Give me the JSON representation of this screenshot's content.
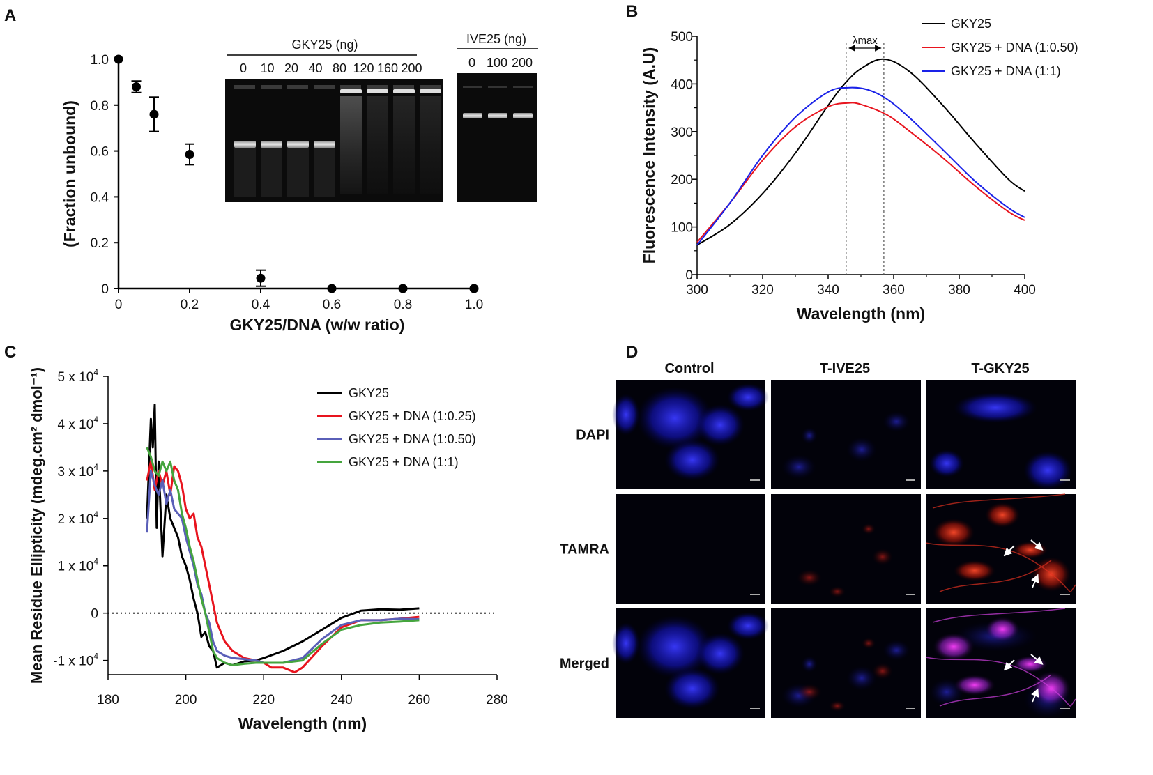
{
  "panels": {
    "a": "A",
    "b": "B",
    "c": "C",
    "d": "D"
  },
  "chart_data": [
    {
      "id": "A",
      "type": "scatter",
      "xlabel": "GKY25/DNA (w/w ratio)",
      "ylabel": "(Fraction unbound)",
      "xlim": [
        0,
        1.0
      ],
      "ylim": [
        0,
        1.0
      ],
      "xticks": [
        "0",
        "0.2",
        "0.4",
        "0.6",
        "0.8",
        "1.0"
      ],
      "yticks": [
        "0",
        "0.2",
        "0.4",
        "0.6",
        "0.8",
        "1.0"
      ],
      "points": [
        {
          "x": 0,
          "y": 1.0,
          "err": 0
        },
        {
          "x": 0.05,
          "y": 0.88,
          "err": 0.025
        },
        {
          "x": 0.1,
          "y": 0.76,
          "err": 0.075
        },
        {
          "x": 0.2,
          "y": 0.585,
          "err": 0.045
        },
        {
          "x": 0.4,
          "y": 0.045,
          "err": 0.035
        },
        {
          "x": 0.6,
          "y": 0.0,
          "err": 0
        },
        {
          "x": 0.8,
          "y": 0.0,
          "err": 0
        },
        {
          "x": 1.0,
          "y": 0.0,
          "err": 0
        }
      ],
      "gel_gky": {
        "title": "GKY25 (ng)",
        "lanes": [
          "0",
          "10",
          "20",
          "40",
          "80",
          "120",
          "160",
          "200"
        ],
        "band": [
          "low",
          "low",
          "low",
          "low",
          "well",
          "well",
          "well",
          "well"
        ]
      },
      "gel_ive": {
        "title": "IVE25 (ng)",
        "lanes": [
          "0",
          "100",
          "200"
        ]
      }
    },
    {
      "id": "B",
      "type": "line",
      "xlabel": "Wavelength (nm)",
      "ylabel": "Fluorescence Intensity (A.U)",
      "xlim": [
        300,
        400
      ],
      "ylim": [
        0,
        500
      ],
      "xticks": [
        "300",
        "320",
        "340",
        "360",
        "380",
        "400"
      ],
      "yticks": [
        "0",
        "100",
        "200",
        "300",
        "400",
        "500"
      ],
      "annotation": "λmax",
      "vlines": [
        345.5,
        357
      ],
      "series": [
        {
          "name": "GKY25",
          "color": "#000000",
          "x": [
            300,
            310,
            320,
            330,
            340,
            345,
            350,
            357,
            365,
            375,
            385,
            395,
            400
          ],
          "y": [
            62,
            105,
            170,
            255,
            355,
            400,
            432,
            452,
            425,
            355,
            275,
            200,
            175
          ]
        },
        {
          "name": "GKY25 + DNA (1:0.50)",
          "color": "#e8141e",
          "x": [
            300,
            310,
            320,
            330,
            340,
            346,
            350,
            358,
            365,
            375,
            385,
            395,
            400
          ],
          "y": [
            68,
            150,
            240,
            310,
            352,
            360,
            357,
            335,
            300,
            245,
            185,
            132,
            114
          ]
        },
        {
          "name": "GKY25 + DNA (1:1)",
          "color": "#1a22e8",
          "x": [
            300,
            310,
            320,
            330,
            340,
            346,
            352,
            358,
            365,
            375,
            385,
            395,
            400
          ],
          "y": [
            62,
            150,
            250,
            330,
            383,
            392,
            388,
            368,
            328,
            262,
            195,
            140,
            120
          ]
        }
      ]
    },
    {
      "id": "C",
      "type": "line",
      "xlabel": "Wavelength (nm)",
      "ylabel": "Mean Residue Ellipticity (mdeg.cm² dmol⁻¹)",
      "xlim": [
        180,
        280
      ],
      "ylim": [
        -13000,
        50000
      ],
      "xticks": [
        "180",
        "200",
        "220",
        "240",
        "260",
        "280"
      ],
      "yticks": [
        {
          "v": -10000,
          "base": "-1 x 10",
          "exp": "4"
        },
        {
          "v": 0,
          "base": "0",
          "exp": ""
        },
        {
          "v": 10000,
          "base": "1 x 10",
          "exp": "4"
        },
        {
          "v": 20000,
          "base": "2 x 10",
          "exp": "4"
        },
        {
          "v": 30000,
          "base": "3 x 10",
          "exp": "4"
        },
        {
          "v": 40000,
          "base": "4 x 10",
          "exp": "4"
        },
        {
          "v": 50000,
          "base": "5 x 10",
          "exp": "4"
        }
      ],
      "series": [
        {
          "name": "GKY25",
          "color": "#000000",
          "x": [
            190,
            191,
            191.5,
            192,
            192.5,
            193,
            194,
            195,
            196,
            197,
            198,
            199,
            200,
            201,
            202,
            203,
            204,
            205,
            206,
            207,
            208,
            210,
            212,
            215,
            218,
            220,
            225,
            230,
            235,
            240,
            245,
            250,
            255,
            260
          ],
          "y": [
            20000,
            41000,
            35000,
            44000,
            18000,
            32000,
            12000,
            25000,
            20000,
            18000,
            16000,
            12000,
            10000,
            7000,
            3000,
            0,
            -5000,
            -4000,
            -7000,
            -8000,
            -11500,
            -10500,
            -11000,
            -10200,
            -10000,
            -9500,
            -8000,
            -6000,
            -3500,
            -1000,
            500,
            800,
            700,
            1000
          ]
        },
        {
          "name": "GKY25 + DNA (1:0.25)",
          "color": "#e8141e",
          "x": [
            190,
            191,
            192,
            193,
            194,
            195,
            196,
            197,
            198,
            199,
            200,
            201,
            202,
            203,
            204,
            205,
            206,
            207,
            208,
            210,
            212,
            215,
            218,
            220,
            222,
            225,
            228,
            230,
            235,
            240,
            245,
            250,
            255,
            260
          ],
          "y": [
            28000,
            32000,
            26000,
            30000,
            27000,
            30000,
            25000,
            31000,
            30000,
            27000,
            22000,
            20000,
            21000,
            16000,
            14000,
            10000,
            6000,
            2000,
            -2000,
            -6000,
            -8000,
            -9500,
            -10000,
            -10500,
            -11500,
            -11500,
            -12500,
            -11500,
            -7000,
            -3000,
            -1500,
            -1500,
            -1200,
            -800
          ]
        },
        {
          "name": "GKY25 + DNA (1:0.50)",
          "color": "#5a5fb8",
          "x": [
            190,
            191,
            192,
            193,
            194,
            195,
            196,
            197,
            198,
            199,
            200,
            201,
            202,
            203,
            204,
            205,
            206,
            207,
            208,
            210,
            212,
            215,
            218,
            220,
            225,
            230,
            235,
            240,
            245,
            250,
            255,
            260
          ],
          "y": [
            17000,
            30000,
            27000,
            25000,
            28000,
            23000,
            26000,
            22000,
            21000,
            20000,
            16000,
            13000,
            10000,
            6000,
            4000,
            0,
            -2000,
            -6000,
            -8000,
            -9000,
            -9500,
            -9700,
            -10000,
            -10500,
            -10500,
            -9500,
            -5500,
            -2500,
            -1500,
            -1500,
            -1200,
            -1300
          ]
        },
        {
          "name": "GKY25 + DNA (1:1)",
          "color": "#45a53e",
          "x": [
            190,
            191,
            192,
            193,
            194,
            195,
            196,
            197,
            198,
            199,
            200,
            201,
            202,
            203,
            204,
            205,
            206,
            207,
            208,
            210,
            212,
            215,
            218,
            220,
            225,
            230,
            235,
            240,
            245,
            250,
            255,
            260
          ],
          "y": [
            35000,
            33000,
            30000,
            29000,
            32000,
            30000,
            32000,
            28000,
            26000,
            21000,
            18000,
            14000,
            11000,
            7000,
            3000,
            0,
            -4000,
            -8000,
            -9500,
            -10500,
            -11000,
            -10700,
            -10500,
            -10500,
            -10500,
            -10000,
            -6500,
            -3500,
            -2500,
            -2000,
            -1800,
            -1500
          ]
        }
      ]
    }
  ],
  "microscopy": {
    "columns": [
      "Control",
      "T-IVE25",
      "T-GKY25"
    ],
    "rows": [
      "DAPI",
      "TAMRA",
      "Merged"
    ]
  }
}
